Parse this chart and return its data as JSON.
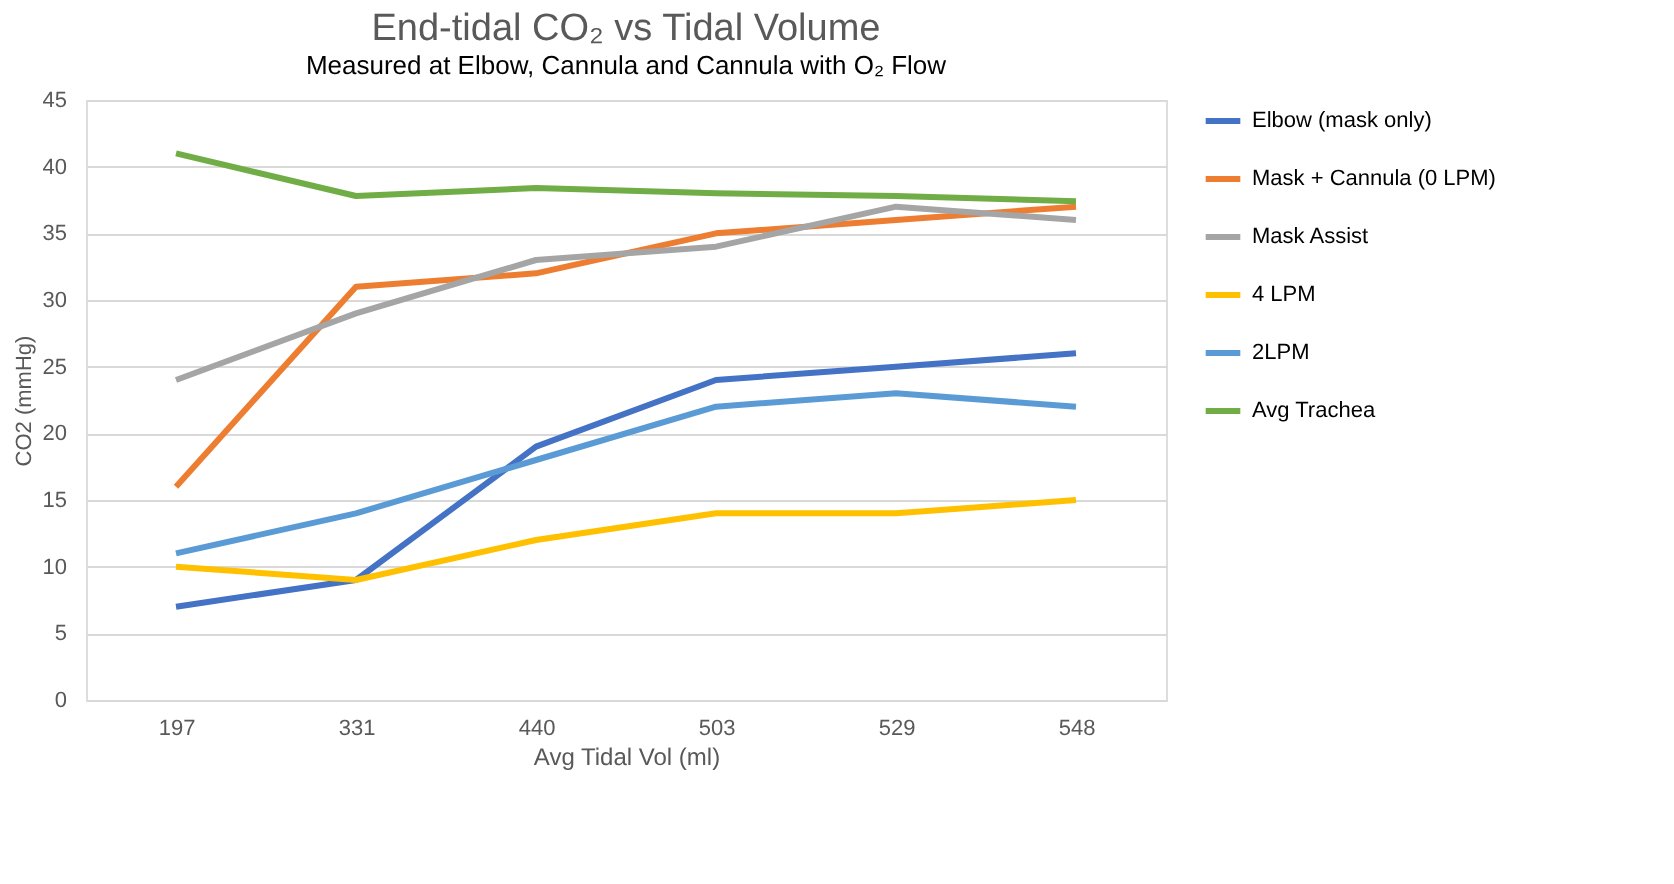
{
  "chart_data": {
    "type": "line",
    "title": "End-tidal CO₂ vs Tidal Volume",
    "subtitle": "Measured at Elbow, Cannula and Cannula with O₂ Flow",
    "xlabel": "Avg Tidal Vol (ml)",
    "ylabel": "CO2 (mmHg)",
    "categories": [
      "197",
      "331",
      "440",
      "503",
      "529",
      "548"
    ],
    "series": [
      {
        "name": "Elbow (mask only)",
        "color": "#4472c4",
        "values": [
          7,
          9,
          19,
          24,
          25,
          26
        ]
      },
      {
        "name": "Mask + Cannula (0 LPM)",
        "color": "#ed7d31",
        "values": [
          16,
          31,
          32,
          35,
          36,
          37
        ]
      },
      {
        "name": "Mask Assist",
        "color": "#a5a5a5",
        "values": [
          24,
          29,
          33,
          34,
          37,
          36
        ]
      },
      {
        "name": "4 LPM",
        "color": "#ffc000",
        "values": [
          10,
          9,
          12,
          14,
          14,
          15
        ]
      },
      {
        "name": "2LPM",
        "color": "#5b9bd5",
        "values": [
          11,
          14,
          18,
          22,
          23,
          22
        ]
      },
      {
        "name": "Avg Trachea",
        "color": "#70ad47",
        "values": [
          41,
          37.8,
          38.4,
          38,
          37.8,
          37.4
        ]
      }
    ],
    "ylim": [
      0,
      45
    ],
    "yticks": [
      0,
      5,
      10,
      15,
      20,
      25,
      30,
      35,
      40,
      45
    ],
    "grid": "y",
    "legend": "right",
    "marker": "none",
    "line_style": "solid"
  }
}
